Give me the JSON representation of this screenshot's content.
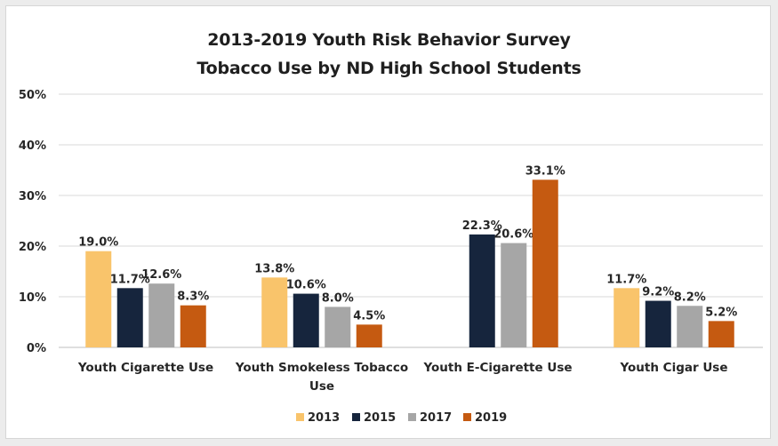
{
  "chart_data": {
    "type": "bar",
    "title": [
      "2013-2019 Youth Risk Behavior Survey",
      "Tobacco Use by ND High School Students"
    ],
    "categories": [
      [
        "Youth Cigarette Use"
      ],
      [
        "Youth Smokeless Tobacco",
        "Use"
      ],
      [
        "Youth E-Cigarette Use"
      ],
      [
        "Youth Cigar Use"
      ]
    ],
    "series": [
      {
        "name": "2013",
        "color": "#f9c46b",
        "values": [
          19.0,
          13.8,
          null,
          11.7
        ],
        "labels": [
          "19.0%",
          "13.8%",
          "",
          "11.7%"
        ]
      },
      {
        "name": "2015",
        "color": "#16253d",
        "values": [
          11.7,
          10.6,
          22.3,
          9.2
        ],
        "labels": [
          "11.7%",
          "10.6%",
          "22.3%",
          "9.2%"
        ]
      },
      {
        "name": "2017",
        "color": "#a6a6a6",
        "values": [
          12.6,
          8.0,
          20.6,
          8.2
        ],
        "labels": [
          "12.6%",
          "8.0%",
          "20.6%",
          "8.2%"
        ]
      },
      {
        "name": "2019",
        "color": "#c55a11",
        "values": [
          8.3,
          4.5,
          33.1,
          5.2
        ],
        "labels": [
          "8.3%",
          "4.5%",
          "33.1%",
          "5.2%"
        ]
      }
    ],
    "ylim": [
      0,
      50
    ],
    "yticks": [
      "0%",
      "10%",
      "20%",
      "30%",
      "40%",
      "50%"
    ],
    "grid": true,
    "legend": "bottom-center"
  }
}
